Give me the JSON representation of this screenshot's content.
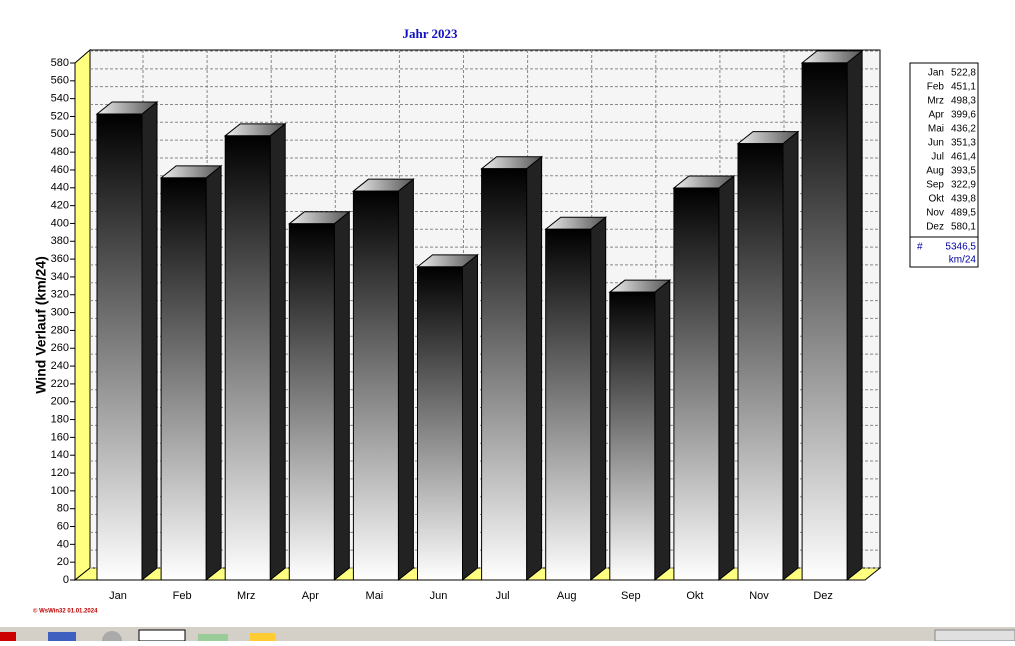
{
  "chart_data": {
    "type": "bar3d",
    "title": "Jahr  2023",
    "y_label": "Wind Verlauf  (km/24)",
    "categories": [
      "Jan",
      "Feb",
      "Mrz",
      "Apr",
      "Mai",
      "Jun",
      "Jul",
      "Aug",
      "Sep",
      "Okt",
      "Nov",
      "Dez"
    ],
    "values": [
      522.8,
      451.1,
      498.3,
      399.6,
      436.2,
      351.3,
      461.4,
      393.5,
      322.9,
      439.8,
      489.5,
      580.1
    ],
    "value_labels": [
      "522,8",
      "451,1",
      "498,3",
      "399,6",
      "436,2",
      "351,3",
      "461,4",
      "393,5",
      "322,9",
      "439,8",
      "489,5",
      "580,1"
    ],
    "ylim": [
      0,
      595
    ],
    "yticks": [
      0,
      20,
      40,
      60,
      80,
      100,
      120,
      140,
      160,
      180,
      200,
      220,
      240,
      260,
      280,
      300,
      320,
      340,
      360,
      380,
      400,
      420,
      440,
      460,
      480,
      500,
      520,
      540,
      560,
      580
    ],
    "grid": true,
    "total_symbol": "#",
    "total": {
      "value": 5346.5,
      "label": "5346,5"
    },
    "unit": "km/24",
    "footer": "© WsWin32  01.01.2024"
  }
}
